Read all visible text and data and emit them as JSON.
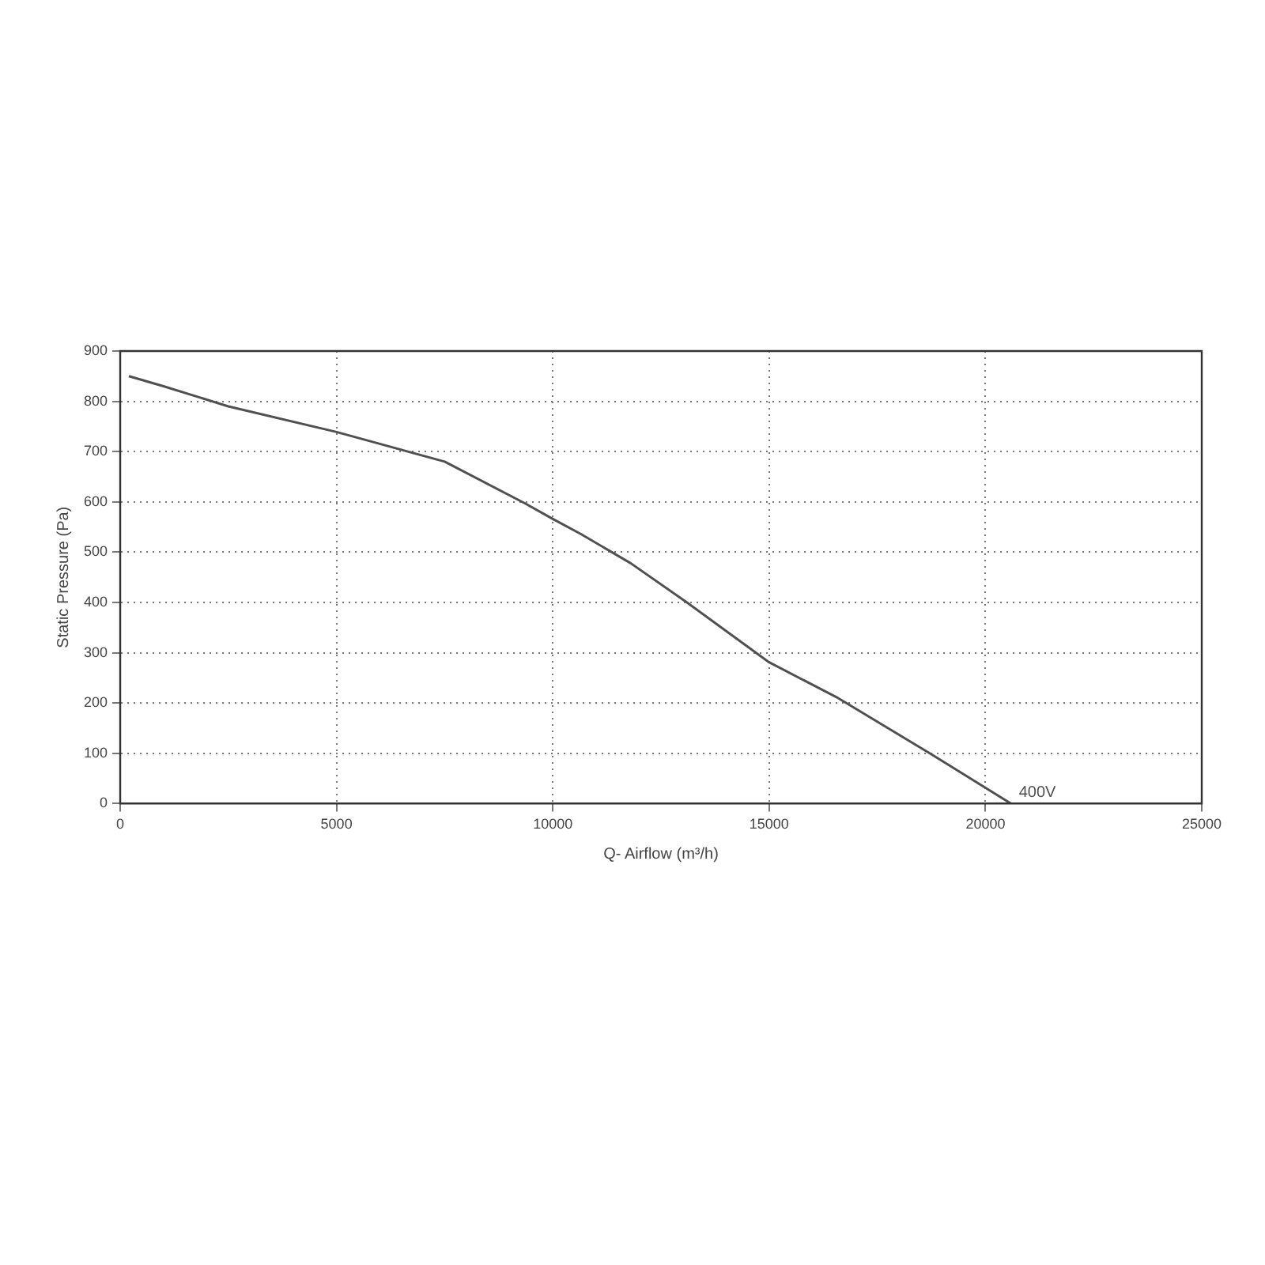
{
  "chart_data": {
    "type": "line",
    "xlabel": "Q- Airflow (m³/h)",
    "ylabel": "Static Pressure (Pa)",
    "xlim": [
      0,
      25000
    ],
    "xticks": [
      0,
      5000,
      10000,
      15000,
      20000,
      25000
    ],
    "ylim": [
      0,
      900
    ],
    "yticks": [
      0,
      100,
      200,
      300,
      400,
      500,
      600,
      700,
      800,
      900
    ],
    "grid": true,
    "legend": false,
    "marker": "none",
    "line_style": "solid",
    "series": [
      {
        "name": "400V",
        "color": "#505050",
        "x": [
          200,
          1000,
          2500,
          5000,
          7500,
          9360,
          10000,
          10650,
          11800,
          13100,
          15000,
          16550,
          18750,
          20590
        ],
        "values": [
          850,
          830,
          790,
          739,
          680,
          597,
          566,
          536,
          478,
          400,
          281,
          212,
          98,
          0
        ]
      }
    ]
  }
}
